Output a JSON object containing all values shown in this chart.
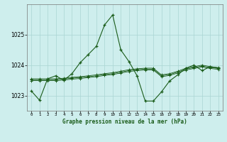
{
  "title": "Graphe pression niveau de la mer (hPa)",
  "background_color": "#ceeeed",
  "grid_color": "#aad5d3",
  "line_color": "#1a5c1a",
  "xlim": [
    -0.5,
    23.5
  ],
  "ylim": [
    1022.5,
    1026.0
  ],
  "yticks": [
    1023,
    1024,
    1025
  ],
  "xtick_positions": [
    0,
    1,
    2,
    3,
    4,
    5,
    6,
    7,
    8,
    9,
    10,
    11,
    12,
    13,
    14,
    15,
    16,
    17,
    18,
    19,
    20,
    21,
    22,
    23
  ],
  "xtick_labels": [
    "0",
    "1",
    "2",
    "3",
    "4",
    "5",
    "6",
    "7",
    "8",
    "9",
    "10",
    "11",
    "12",
    "13",
    "14",
    "15",
    "16",
    "17",
    "18",
    "19",
    "20",
    "21",
    "22",
    "23"
  ],
  "series_main": [
    1023.15,
    1022.85,
    1023.55,
    1023.65,
    1023.5,
    1023.72,
    1024.08,
    1024.35,
    1024.62,
    1025.32,
    1025.65,
    1024.5,
    1024.12,
    1023.65,
    1022.82,
    1022.82,
    1023.12,
    1023.48,
    1023.68,
    1023.9,
    1024.0,
    1023.82,
    1023.95,
    1023.9
  ],
  "series_flat1": [
    1023.55,
    1023.55,
    1023.55,
    1023.55,
    1023.57,
    1023.6,
    1023.62,
    1023.65,
    1023.68,
    1023.72,
    1023.75,
    1023.8,
    1023.85,
    1023.88,
    1023.9,
    1023.9,
    1023.68,
    1023.72,
    1023.8,
    1023.9,
    1023.95,
    1024.0,
    1023.95,
    1023.92
  ],
  "series_flat2": [
    1023.52,
    1023.52,
    1023.52,
    1023.52,
    1023.54,
    1023.57,
    1023.59,
    1023.62,
    1023.65,
    1023.69,
    1023.72,
    1023.77,
    1023.82,
    1023.85,
    1023.87,
    1023.87,
    1023.65,
    1023.69,
    1023.77,
    1023.87,
    1023.92,
    1023.97,
    1023.92,
    1023.89
  ],
  "series_flat3": [
    1023.49,
    1023.49,
    1023.49,
    1023.49,
    1023.51,
    1023.54,
    1023.56,
    1023.59,
    1023.62,
    1023.66,
    1023.69,
    1023.74,
    1023.79,
    1023.82,
    1023.84,
    1023.84,
    1023.62,
    1023.66,
    1023.74,
    1023.84,
    1023.89,
    1023.94,
    1023.89,
    1023.86
  ]
}
